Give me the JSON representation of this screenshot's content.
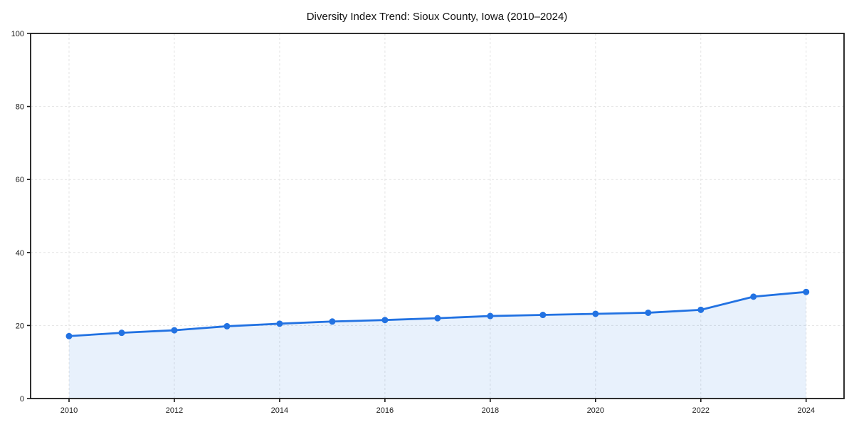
{
  "figure": {
    "background": "#ffffff"
  },
  "chart_data": {
    "type": "line",
    "title": "Diversity Index Trend: Sioux County, Iowa (2010–2024)",
    "x": [
      2010,
      2011,
      2012,
      2013,
      2014,
      2015,
      2016,
      2017,
      2018,
      2019,
      2020,
      2021,
      2022,
      2023,
      2024
    ],
    "series": [
      {
        "name": "Diversity Index",
        "values": [
          17.1,
          18.0,
          18.7,
          19.8,
          20.5,
          21.1,
          21.5,
          22.0,
          22.6,
          22.9,
          23.2,
          23.5,
          24.3,
          27.9,
          29.2
        ]
      }
    ],
    "xlabel": "",
    "ylabel": "",
    "xlim": [
      2009.27,
      2024.72
    ],
    "ylim": [
      0,
      100
    ],
    "xticks": [
      2010,
      2012,
      2014,
      2016,
      2018,
      2020,
      2022,
      2024
    ],
    "yticks": [
      0,
      20,
      40,
      60,
      80,
      100
    ],
    "grid": true,
    "grid_style": "dashed",
    "area_fill": true,
    "markers": true,
    "legend": "none",
    "colors": {
      "line": "#2272e2",
      "marker": "#2272e2",
      "fill": "rgba(34,114,226,0.10)",
      "grid": "#e3e3e3",
      "axis": "#1a1a1a",
      "title_text": "#111111",
      "tick_text": "#1a1a1a"
    }
  }
}
